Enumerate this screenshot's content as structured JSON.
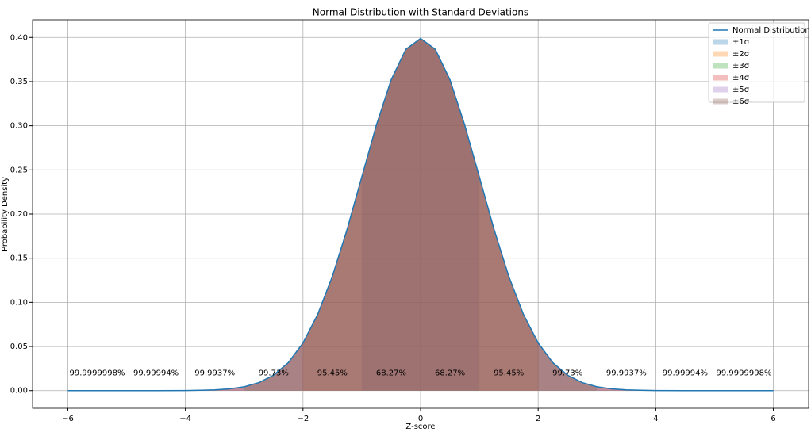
{
  "chart_data": {
    "type": "line",
    "title": "Normal Distribution with Standard Deviations",
    "xlabel": "Z-score",
    "ylabel": "Probability Density",
    "x": [
      -6,
      -5,
      -4.5,
      -4,
      -3.75,
      -3.5,
      -3.25,
      -3,
      -2.75,
      -2.5,
      -2.25,
      -2,
      -1.75,
      -1.5,
      -1.25,
      -1,
      -0.75,
      -0.5,
      -0.25,
      0,
      0.25,
      0.5,
      0.75,
      1,
      1.25,
      1.5,
      1.75,
      2,
      2.25,
      2.5,
      2.75,
      3,
      3.25,
      3.5,
      3.75,
      4,
      4.5,
      5,
      6
    ],
    "series": [
      {
        "name": "Normal Distribution",
        "color": "#1f77b4",
        "values": [
          0,
          0,
          0,
          0.0001,
          0.0004,
          0.0009,
          0.002,
          0.0044,
          0.0091,
          0.0175,
          0.0317,
          0.054,
          0.0863,
          0.1295,
          0.1826,
          0.242,
          0.3011,
          0.3521,
          0.3867,
          0.3989,
          0.3867,
          0.3521,
          0.3011,
          0.242,
          0.1826,
          0.1295,
          0.0863,
          0.054,
          0.0317,
          0.0175,
          0.0091,
          0.0044,
          0.002,
          0.0009,
          0.0004,
          0.0001,
          0,
          0,
          0
        ]
      }
    ],
    "fills": [
      {
        "name": "±1σ",
        "color": "#1f77b4",
        "range": [
          -1,
          1
        ]
      },
      {
        "name": "±2σ",
        "color": "#ff7f0e",
        "range": [
          -2,
          2
        ]
      },
      {
        "name": "±3σ",
        "color": "#2ca02c",
        "range": [
          -3,
          3
        ]
      },
      {
        "name": "±4σ",
        "color": "#d62728",
        "range": [
          -4,
          4
        ]
      },
      {
        "name": "±5σ",
        "color": "#9467bd",
        "range": [
          -5,
          5
        ]
      },
      {
        "name": "±6σ",
        "color": "#8c564b",
        "range": [
          -6,
          6
        ]
      }
    ],
    "annotations": [
      {
        "text": "99.9999998%",
        "x": -5.5,
        "y": 0.02
      },
      {
        "text": "99.99994%",
        "x": -4.5,
        "y": 0.02
      },
      {
        "text": "99.9937%",
        "x": -3.5,
        "y": 0.02
      },
      {
        "text": "99.73%",
        "x": -2.5,
        "y": 0.02
      },
      {
        "text": "95.45%",
        "x": -1.5,
        "y": 0.02
      },
      {
        "text": "68.27%",
        "x": -0.5,
        "y": 0.02
      },
      {
        "text": "68.27%",
        "x": 0.5,
        "y": 0.02
      },
      {
        "text": "95.45%",
        "x": 1.5,
        "y": 0.02
      },
      {
        "text": "99.73%",
        "x": 2.5,
        "y": 0.02
      },
      {
        "text": "99.9937%",
        "x": 3.5,
        "y": 0.02
      },
      {
        "text": "99.99994%",
        "x": 4.5,
        "y": 0.02
      },
      {
        "text": "99.9999998%",
        "x": 5.5,
        "y": 0.02
      }
    ],
    "xlim": [
      -6.6,
      6.6
    ],
    "ylim": [
      -0.02,
      0.42
    ],
    "xticks": [
      {
        "value": -6,
        "label": "−6"
      },
      {
        "value": -4,
        "label": "−4"
      },
      {
        "value": -2,
        "label": "−2"
      },
      0,
      2,
      4,
      6
    ],
    "yticks": [
      {
        "value": 0,
        "label": "0.00"
      },
      {
        "value": 0.05,
        "label": "0.05"
      },
      {
        "value": 0.1,
        "label": "0.10"
      },
      {
        "value": 0.15,
        "label": "0.15"
      },
      {
        "value": 0.2,
        "label": "0.20"
      },
      {
        "value": 0.25,
        "label": "0.25"
      },
      {
        "value": 0.3,
        "label": "0.30"
      },
      {
        "value": 0.35,
        "label": "0.35"
      },
      {
        "value": 0.4,
        "label": "0.40"
      }
    ],
    "grid": true,
    "legend": "upper right"
  }
}
